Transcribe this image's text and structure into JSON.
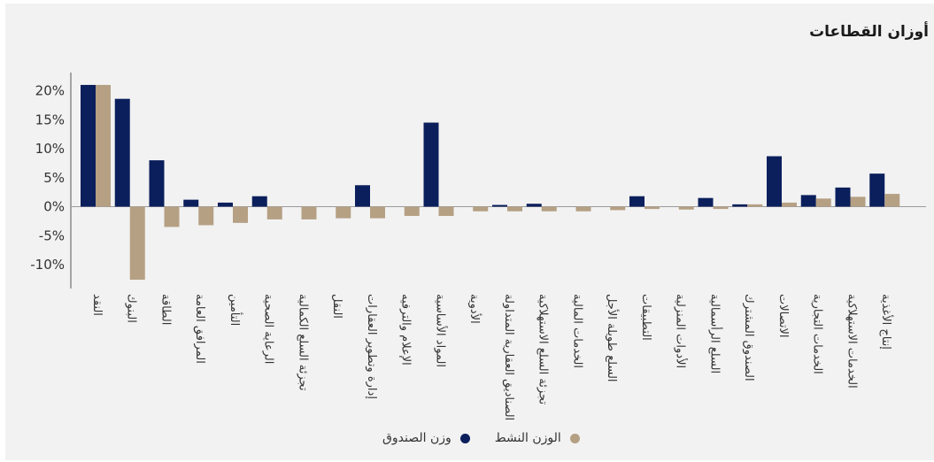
{
  "title": "أوزان القطاعات",
  "chart_data": {
    "type": "bar",
    "title": "أوزان القطاعات",
    "ylim": [
      -13,
      23
    ],
    "yticks": [
      -10,
      -5,
      0,
      5,
      10,
      15,
      20
    ],
    "ytick_labels": [
      "-10%",
      "-5%",
      "0%",
      "5%",
      "10%",
      "15%",
      "20%"
    ],
    "categories": [
      "النقد",
      "البنوك",
      "الطاقة",
      "المرافق العامة",
      "التأمين",
      "الرعاية الصحية",
      "تجزئة السلع الكمالية",
      "النقل",
      "إدارة وتطوير العقارات",
      "الإعلام والترفيه",
      "المواد الأساسية",
      "الأدوية",
      "الصناديق العقارية المتداولة",
      "تجزئة السلع الاستهلاكية",
      "الخدمات المالية",
      "السلع طويلة الأجل",
      "التطبيقات",
      "الأدوات المنزلية",
      "السلع الرأسمالية",
      "الصندوق المشترك",
      "الاتصالات",
      "الخدمات التجارية",
      "الخدمات الاستهلاكية",
      "إنتاج الأغذية"
    ],
    "series": [
      {
        "name": "وزن الصندوق",
        "color": "#0b1f5c",
        "values": [
          21.0,
          18.6,
          8.0,
          1.2,
          0.7,
          1.8,
          0.0,
          0.0,
          3.7,
          0.0,
          14.5,
          0.0,
          0.3,
          0.5,
          0.0,
          0.0,
          1.8,
          0.0,
          1.5,
          0.4,
          8.7,
          2.0,
          3.3,
          5.7
        ]
      },
      {
        "name": "الوزن النشط",
        "color": "#b5a084",
        "values": [
          21.0,
          -12.6,
          -3.5,
          -3.2,
          -2.8,
          -2.2,
          -2.2,
          -2.0,
          -2.0,
          -1.6,
          -1.6,
          -0.8,
          -0.8,
          -0.8,
          -0.8,
          -0.6,
          -0.4,
          -0.5,
          -0.4,
          0.4,
          0.7,
          1.4,
          1.7,
          2.2
        ]
      }
    ],
    "legend": {
      "position": "bottom-center"
    },
    "grid": false
  }
}
